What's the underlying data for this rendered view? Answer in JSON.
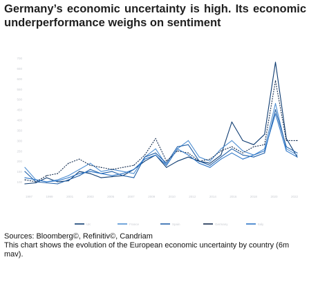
{
  "title": "Germany’s economic uncertainty is high. Its economic underperformance weighs on sentiment",
  "sources": {
    "line1": "Sources: Bloomberg©, Refinitiv©, Candriam",
    "line2": "This chart shows the evolution of the European economic uncertainty by country (6m mav)."
  },
  "chart_data": {
    "type": "line",
    "title": "",
    "xlabel": "",
    "ylabel": "",
    "x": [
      1997,
      1998,
      1999,
      2000,
      2001,
      2002,
      2003,
      2004,
      2005,
      2006,
      2007,
      2008,
      2009,
      2010,
      2011,
      2012,
      2013,
      2014,
      2015,
      2016,
      2017,
      2018,
      2019,
      2020,
      2021,
      2022
    ],
    "x_tick_labels": [
      "1997",
      "1999",
      "2001",
      "2003",
      "2005",
      "2007",
      "2009",
      "2010",
      "2012",
      "2014",
      "2016",
      "2018",
      "2020",
      "2022"
    ],
    "y_tick_labels": [
      "100",
      "150",
      "200",
      "250",
      "300",
      "350",
      "400",
      "450",
      "500",
      "550",
      "600",
      "650",
      "700"
    ],
    "ylim": [
      70,
      700
    ],
    "legend_position": "bottom",
    "series": [
      {
        "name": "UK",
        "color": "#0c3a70",
        "values": [
          90,
          95,
          120,
          100,
          105,
          150,
          140,
          120,
          125,
          130,
          160,
          200,
          230,
          170,
          200,
          220,
          200,
          190,
          230,
          390,
          300,
          280,
          330,
          680,
          310,
          220
        ]
      },
      {
        "name": "France",
        "color": "#4f8fd2",
        "values": [
          170,
          110,
          100,
          110,
          130,
          160,
          190,
          150,
          160,
          150,
          140,
          220,
          260,
          180,
          260,
          300,
          220,
          200,
          260,
          300,
          250,
          230,
          260,
          480,
          260,
          230
        ]
      },
      {
        "name": "Spain",
        "color": "#1f5fa8",
        "values": [
          150,
          100,
          95,
          90,
          110,
          130,
          160,
          140,
          150,
          130,
          120,
          220,
          240,
          190,
          270,
          280,
          200,
          180,
          220,
          260,
          230,
          220,
          240,
          450,
          270,
          240
        ]
      },
      {
        "name": "Germany",
        "color": "#10294d",
        "values": [
          110,
          100,
          130,
          140,
          190,
          210,
          180,
          170,
          160,
          170,
          180,
          230,
          310,
          200,
          250,
          240,
          200,
          210,
          250,
          270,
          240,
          270,
          280,
          590,
          300,
          300
        ]
      },
      {
        "name": "Italy",
        "color": "#2c75c7",
        "values": [
          120,
          110,
          100,
          105,
          120,
          140,
          150,
          140,
          130,
          140,
          160,
          210,
          230,
          180,
          260,
          230,
          190,
          170,
          210,
          240,
          210,
          230,
          250,
          430,
          250,
          220
        ]
      }
    ]
  }
}
